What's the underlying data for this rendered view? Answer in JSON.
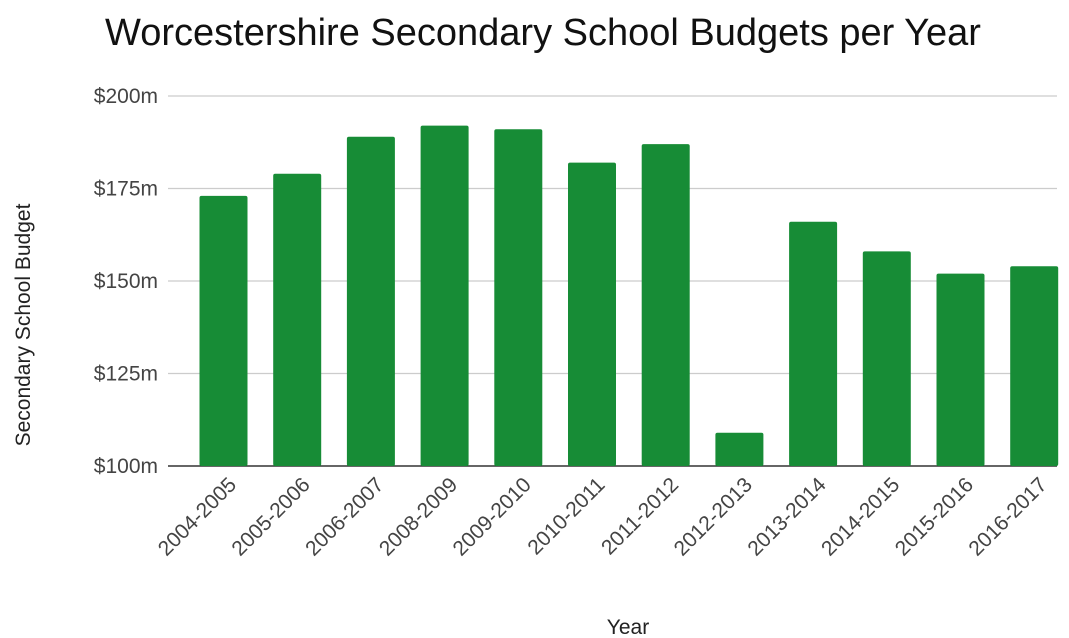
{
  "chart_data": {
    "type": "bar",
    "title": "Worcestershire Secondary School Budgets per Year",
    "xlabel": "Year",
    "ylabel": "Secondary School Budget",
    "categories": [
      "2004-2005",
      "2005-2006",
      "2006-2007",
      "2008-2009",
      "2009-2010",
      "2010-2011",
      "2011-2012",
      "2012-2013",
      "2013-2014",
      "2014-2015",
      "2015-2016",
      "2016-2017"
    ],
    "values": [
      173,
      179,
      189,
      192,
      191,
      182,
      187,
      109,
      166,
      158,
      152,
      154
    ],
    "ylim": [
      100,
      200
    ],
    "yticks": [
      100,
      125,
      150,
      175,
      200
    ],
    "ytick_labels": [
      "$100m",
      "$125m",
      "$150m",
      "$175m",
      "$200m"
    ],
    "bar_color": "#178c36",
    "grid": true
  }
}
